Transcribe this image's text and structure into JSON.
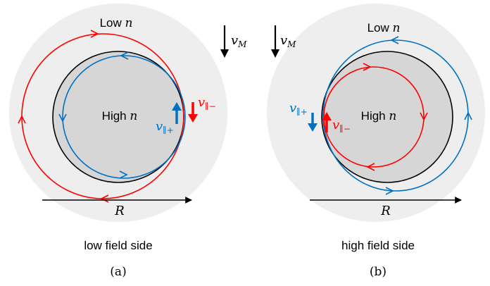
{
  "colors": {
    "outer_fill": "#eeeeee",
    "inner_fill": "#d6d6d6",
    "red": "#ff0000",
    "blue": "#0070c0",
    "black": "#000000"
  },
  "panels": [
    {
      "id": "a",
      "low_n": {
        "text": "Low ",
        "var": "n"
      },
      "high_n": {
        "text": "High ",
        "var": "n"
      },
      "v_m": {
        "var": "v",
        "sub": "M"
      },
      "v_par_plus": {
        "var": "v",
        "sub": "∥+"
      },
      "v_par_minus": {
        "var": "v",
        "sub": "∥−"
      },
      "r_label": "R",
      "side_label": "low field side",
      "caption": "(a)"
    },
    {
      "id": "b",
      "low_n": {
        "text": "Low ",
        "var": "n"
      },
      "high_n": {
        "text": "High ",
        "var": "n"
      },
      "v_m": {
        "var": "v",
        "sub": "M"
      },
      "v_par_plus": {
        "var": "v",
        "sub": "∥+"
      },
      "v_par_minus": {
        "var": "v",
        "sub": "∥−"
      },
      "r_label": "R",
      "side_label": "high field side",
      "caption": "(b)"
    }
  ]
}
